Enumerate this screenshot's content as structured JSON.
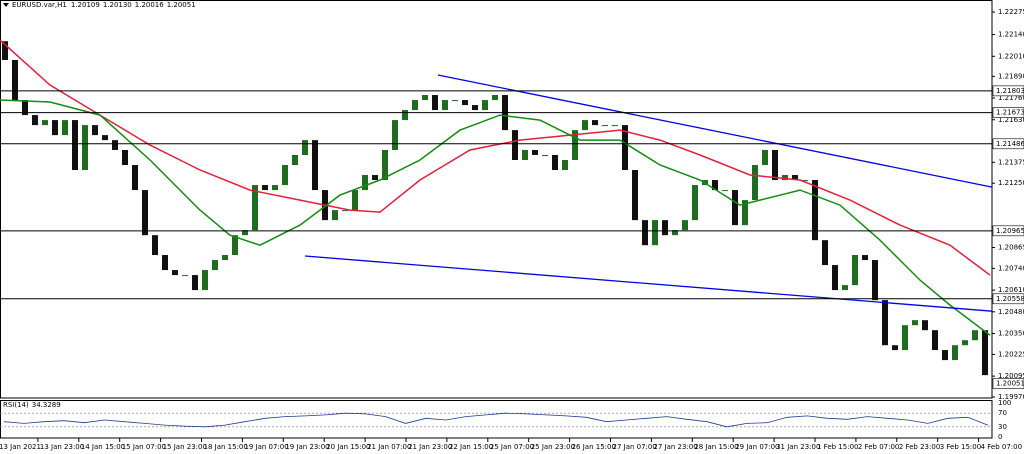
{
  "chart_data": {
    "type": "candlestick",
    "symbol": "EURUSD.var,H1",
    "header_values": [
      "1.20109",
      "1.20130",
      "1.20016",
      "1.20051"
    ],
    "up_color": "#1f6b1f",
    "down_color": "#111111",
    "open": 1.221,
    "close": [
      1.21988,
      1.21748,
      1.21658,
      1.21598,
      1.21628,
      1.21538,
      1.21628,
      1.21329,
      1.21598,
      1.21538,
      1.21508,
      1.21449,
      1.21359,
      1.21209,
      1.20939,
      1.2082,
      1.2073,
      1.207,
      1.207,
      1.2061,
      1.2073,
      1.2079,
      1.2082,
      1.20939,
      1.20969,
      1.21239,
      1.21209,
      1.21239,
      1.21359,
      1.21419,
      1.21508,
      1.21209,
      1.21029,
      1.21089,
      1.21089,
      1.21209,
      1.21299,
      1.21269,
      1.21449,
      1.21628,
      1.21688,
      1.21748,
      1.21778,
      1.21688,
      1.21748,
      1.21748,
      1.21718,
      1.21688,
      1.21748,
      1.21778,
      1.21568,
      1.21389,
      1.21449,
      1.21419,
      1.21419,
      1.21329,
      1.21389,
      1.21568,
      1.21628,
      1.21598,
      1.21598,
      1.21598,
      1.21329,
      1.21029,
      1.20879,
      1.21029,
      1.20939,
      1.20969,
      1.21029,
      1.21239,
      1.21269,
      1.21209,
      1.21209,
      1.20999,
      1.21149,
      1.21359,
      1.21449,
      1.21269,
      1.21299,
      1.21269,
      1.21269,
      1.20909,
      1.2076,
      1.2061,
      1.2064,
      1.2082,
      1.2079,
      1.2055,
      1.2028,
      1.20251,
      1.204,
      1.2043,
      1.2037,
      1.20251,
      1.20191,
      1.2028,
      1.2031,
      1.2037,
      1.20101
    ],
    "moving_averages": [
      {
        "color": "#e0223c",
        "x": [
          -0.5,
          4.5,
          9.5,
          14.5,
          19.5,
          24.5,
          29.5,
          34.5,
          37.5,
          41.5,
          46.5,
          51.5,
          56.5,
          61.5,
          65.5,
          69.5,
          74.5,
          79.5,
          84.5,
          89.5,
          94.5,
          98.5
        ],
        "values": [
          1.22107,
          1.21838,
          1.21658,
          1.21478,
          1.21329,
          1.21209,
          1.21149,
          1.21089,
          1.21077,
          1.21269,
          1.21449,
          1.21508,
          1.21538,
          1.21568,
          1.21508,
          1.21419,
          1.21299,
          1.21269,
          1.21149,
          1.20999,
          1.20879,
          1.207
        ]
      },
      {
        "color": "#128c12",
        "x": [
          -0.5,
          4.5,
          9.5,
          14.5,
          19.5,
          22.5,
          25.5,
          29.5,
          33.5,
          37.5,
          41.5,
          45.5,
          49.5,
          53.5,
          57.5,
          61.5,
          65.5,
          69.5,
          73.5,
          75.5,
          79.5,
          83.5,
          87.5,
          91.5,
          94.5,
          98.5
        ],
        "values": [
          1.21748,
          1.21736,
          1.21658,
          1.21389,
          1.21089,
          1.20939,
          1.20879,
          1.20999,
          1.21179,
          1.21269,
          1.21389,
          1.21568,
          1.21658,
          1.21628,
          1.21508,
          1.21508,
          1.21359,
          1.21269,
          1.21119,
          1.21149,
          1.21209,
          1.21119,
          1.20909,
          1.2067,
          1.2052,
          1.2034
        ]
      }
    ],
    "trendlines": [
      {
        "color": "#0000e6",
        "x": [
          43.3,
          98.7
        ],
        "values": [
          1.21898,
          1.21227
        ]
      },
      {
        "color": "#0000e6",
        "x": [
          30,
          98.7
        ],
        "values": [
          1.20814,
          1.20484
        ]
      }
    ],
    "levels": [
      1.21803,
      1.21673,
      1.21486,
      1.20965,
      1.20558
    ],
    "last_price": 1.20051,
    "xlim": [
      -0.5,
      98.7
    ],
    "ylim": [
      1.19964,
      1.22347
    ],
    "yticks": [
      1.22275,
      {
        "value": 1.2214,
        "label": "1.22140"
      },
      {
        "value": 1.2201,
        "label": "1.22010"
      },
      {
        "value": 1.2189,
        "label": "1.21890"
      },
      {
        "value": 1.2176,
        "label": "1.21760"
      },
      {
        "value": 1.2163,
        "label": "1.21630"
      },
      1.21375,
      {
        "value": 1.2125,
        "label": "1.21250"
      },
      1.20865,
      {
        "value": 1.2074,
        "label": "1.20740"
      },
      {
        "value": 1.2061,
        "label": "1.20610"
      },
      {
        "value": 1.2048,
        "label": "1.20480"
      },
      {
        "value": 1.2035,
        "label": "1.20350"
      },
      1.20225,
      1.20095,
      {
        "value": 1.1997,
        "label": "1.19970"
      }
    ],
    "xticks": [
      {
        "value": -0.8,
        "label": "13 Jan 2021"
      },
      {
        "value": 3.29,
        "label": "13 Jan 23:00"
      },
      {
        "value": 7.38,
        "label": "14 Jan 15:00"
      },
      {
        "value": 11.47,
        "label": "15 Jan 07:00"
      },
      {
        "value": 15.56,
        "label": "15 Jan 23:00"
      },
      {
        "value": 19.65,
        "label": "18 Jan 15:00"
      },
      {
        "value": 23.74,
        "label": "19 Jan 07:00"
      },
      {
        "value": 27.83,
        "label": "19 Jan 23:00"
      },
      {
        "value": 31.92,
        "label": "20 Jan 15:00"
      },
      {
        "value": 36.01,
        "label": "21 Jan 07:00"
      },
      {
        "value": 40.1,
        "label": "21 Jan 23:00"
      },
      {
        "value": 44.19,
        "label": "22 Jan 15:00"
      },
      {
        "value": 48.28,
        "label": "25 Jan 07:00"
      },
      {
        "value": 52.37,
        "label": "25 Jan 23:00"
      },
      {
        "value": 56.46,
        "label": "26 Jan 15:00"
      },
      {
        "value": 60.55,
        "label": "27 Jan 07:00"
      },
      {
        "value": 64.64,
        "label": "27 Jan 23:00"
      },
      {
        "value": 68.73,
        "label": "28 Jan 15:00"
      },
      {
        "value": 72.82,
        "label": "29 Jan 07:00"
      },
      {
        "value": 76.91,
        "label": "31 Jan 23:00"
      },
      {
        "value": 81.0,
        "label": "1 Feb 15:00"
      },
      {
        "value": 85.09,
        "label": "2 Feb 07:00"
      },
      {
        "value": 89.18,
        "label": "2 Feb 23:00"
      },
      {
        "value": 93.27,
        "label": "3 Feb 15:00"
      },
      {
        "value": 97.36,
        "label": "4 Feb 07:00"
      }
    ],
    "rsi": {
      "name": "RSI(14)",
      "color": "#1e3c8c",
      "ylim": [
        0,
        100
      ],
      "yticks": [
        100,
        70,
        30,
        0
      ],
      "values": [
        45,
        40,
        45,
        48,
        42,
        50,
        45,
        40,
        35,
        32,
        30,
        35,
        45,
        55,
        60,
        62,
        65,
        70,
        68,
        60,
        40,
        55,
        50,
        60,
        65,
        70,
        68,
        65,
        62,
        58,
        45,
        50,
        55,
        60,
        52,
        45,
        30,
        40,
        42,
        58,
        62,
        55,
        52,
        60,
        55,
        50,
        40,
        55,
        58,
        34.3289
      ]
    }
  }
}
